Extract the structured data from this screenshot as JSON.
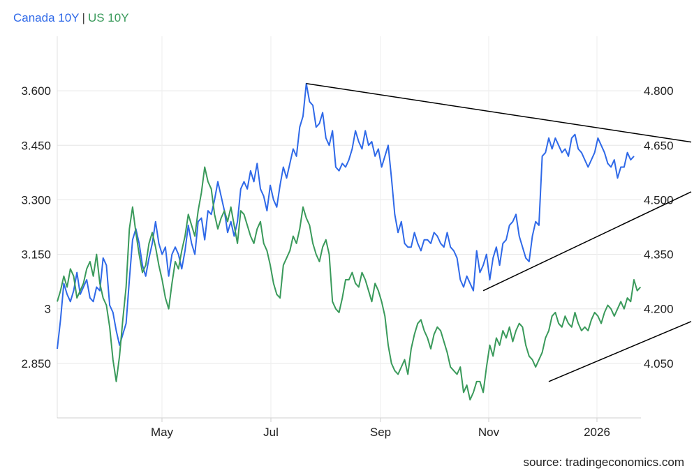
{
  "chart_data": {
    "type": "line",
    "legend_position": "top-left",
    "grid": true,
    "x_ticks": [
      "May",
      "Jul",
      "Sep",
      "Nov",
      "2026"
    ],
    "y_left": {
      "ticks": [
        "2.850",
        "3",
        "3.150",
        "3.300",
        "3.450",
        "3.600"
      ],
      "range": [
        2.7,
        3.75
      ]
    },
    "y_right": {
      "ticks": [
        "4.050",
        "4.200",
        "4.350",
        "4.500",
        "4.650",
        "4.800"
      ],
      "range": [
        3.9,
        4.95
      ]
    },
    "series": [
      {
        "name": "Canada 10Y",
        "axis": "left",
        "color": "#2f69e8",
        "values": [
          2.89,
          2.97,
          3.07,
          3.04,
          3.02,
          3.05,
          3.1,
          3.04,
          3.06,
          3.08,
          3.03,
          3.02,
          3.06,
          3.05,
          3.14,
          3.12,
          3.01,
          2.99,
          2.94,
          2.9,
          2.93,
          2.96,
          3.08,
          3.19,
          3.22,
          3.18,
          3.12,
          3.09,
          3.14,
          3.18,
          3.24,
          3.18,
          3.15,
          3.17,
          3.09,
          3.15,
          3.17,
          3.15,
          3.11,
          3.16,
          3.23,
          3.18,
          3.15,
          3.24,
          3.25,
          3.19,
          3.27,
          3.26,
          3.3,
          3.35,
          3.31,
          3.27,
          3.21,
          3.24,
          3.2,
          3.24,
          3.33,
          3.35,
          3.33,
          3.38,
          3.35,
          3.4,
          3.33,
          3.31,
          3.27,
          3.34,
          3.3,
          3.28,
          3.34,
          3.39,
          3.36,
          3.4,
          3.44,
          3.42,
          3.5,
          3.53,
          3.62,
          3.57,
          3.56,
          3.5,
          3.51,
          3.54,
          3.47,
          3.45,
          3.49,
          3.39,
          3.38,
          3.4,
          3.39,
          3.41,
          3.44,
          3.49,
          3.46,
          3.44,
          3.49,
          3.45,
          3.46,
          3.42,
          3.44,
          3.39,
          3.42,
          3.45,
          3.36,
          3.26,
          3.21,
          3.24,
          3.18,
          3.17,
          3.17,
          3.21,
          3.18,
          3.16,
          3.19,
          3.19,
          3.18,
          3.21,
          3.2,
          3.18,
          3.17,
          3.21,
          3.17,
          3.16,
          3.14,
          3.08,
          3.06,
          3.09,
          3.07,
          3.05,
          3.16,
          3.1,
          3.12,
          3.15,
          3.08,
          3.14,
          3.17,
          3.12,
          3.18,
          3.19,
          3.23,
          3.24,
          3.26,
          3.2,
          3.17,
          3.14,
          3.13,
          3.2,
          3.24,
          3.23,
          3.42,
          3.43,
          3.47,
          3.44,
          3.47,
          3.45,
          3.43,
          3.44,
          3.42,
          3.47,
          3.48,
          3.44,
          3.43,
          3.41,
          3.39,
          3.41,
          3.43,
          3.47,
          3.45,
          3.43,
          3.4,
          3.39,
          3.41,
          3.36,
          3.39,
          3.39,
          3.43,
          3.41,
          3.42
        ]
      },
      {
        "name": "US 10Y",
        "axis": "right",
        "color": "#3a9a5b",
        "values": [
          4.22,
          4.25,
          4.29,
          4.26,
          4.31,
          4.29,
          4.23,
          4.25,
          4.27,
          4.31,
          4.33,
          4.29,
          4.35,
          4.27,
          4.23,
          4.21,
          4.15,
          4.06,
          4.0,
          4.07,
          4.17,
          4.26,
          4.42,
          4.48,
          4.41,
          4.35,
          4.3,
          4.32,
          4.38,
          4.41,
          4.37,
          4.32,
          4.28,
          4.23,
          4.2,
          4.27,
          4.33,
          4.31,
          4.36,
          4.4,
          4.46,
          4.43,
          4.4,
          4.47,
          4.52,
          4.59,
          4.55,
          4.53,
          4.46,
          4.42,
          4.45,
          4.47,
          4.44,
          4.48,
          4.43,
          4.38,
          4.47,
          4.46,
          4.43,
          4.4,
          4.38,
          4.42,
          4.44,
          4.38,
          4.36,
          4.32,
          4.27,
          4.24,
          4.23,
          4.32,
          4.34,
          4.36,
          4.4,
          4.38,
          4.42,
          4.48,
          4.45,
          4.43,
          4.38,
          4.35,
          4.33,
          4.37,
          4.39,
          4.35,
          4.22,
          4.2,
          4.19,
          4.23,
          4.28,
          4.28,
          4.3,
          4.27,
          4.26,
          4.3,
          4.28,
          4.25,
          4.22,
          4.27,
          4.25,
          4.22,
          4.18,
          4.1,
          4.05,
          4.03,
          4.02,
          4.04,
          4.06,
          4.02,
          4.09,
          4.13,
          4.16,
          4.17,
          4.14,
          4.12,
          4.09,
          4.13,
          4.15,
          4.14,
          4.11,
          4.08,
          4.04,
          4.03,
          4.02,
          4.04,
          3.97,
          3.99,
          3.95,
          3.97,
          4.0,
          4.0,
          3.97,
          4.04,
          4.1,
          4.07,
          4.12,
          4.1,
          4.14,
          4.12,
          4.15,
          4.11,
          4.14,
          4.16,
          4.15,
          4.1,
          4.07,
          4.06,
          4.04,
          4.06,
          4.08,
          4.12,
          4.14,
          4.18,
          4.19,
          4.16,
          4.15,
          4.18,
          4.16,
          4.15,
          4.19,
          4.16,
          4.14,
          4.15,
          4.14,
          4.17,
          4.19,
          4.18,
          4.16,
          4.19,
          4.21,
          4.2,
          4.18,
          4.2,
          4.22,
          4.2,
          4.23,
          4.22,
          4.28,
          4.25,
          4.26
        ]
      }
    ],
    "trendlines": [
      {
        "name": "canada-resistance-trendline",
        "axis": "left",
        "from": [
          76,
          3.62
        ],
        "to": [
          200,
          3.45
        ]
      },
      {
        "name": "canada-support-trendline",
        "axis": "left",
        "from": [
          130,
          3.05
        ],
        "to": [
          200,
          3.35
        ]
      },
      {
        "name": "us-support-trendline",
        "axis": "right",
        "from": [
          150,
          4.0
        ],
        "to": [
          200,
          4.19
        ]
      }
    ],
    "source": "source: tradingeconomics.com"
  },
  "legend": {
    "canada_label": "Canada 10Y",
    "separator": "|",
    "us_label": "US 10Y",
    "canada_color": "#2f69e8",
    "us_color": "#3a9a5b"
  }
}
